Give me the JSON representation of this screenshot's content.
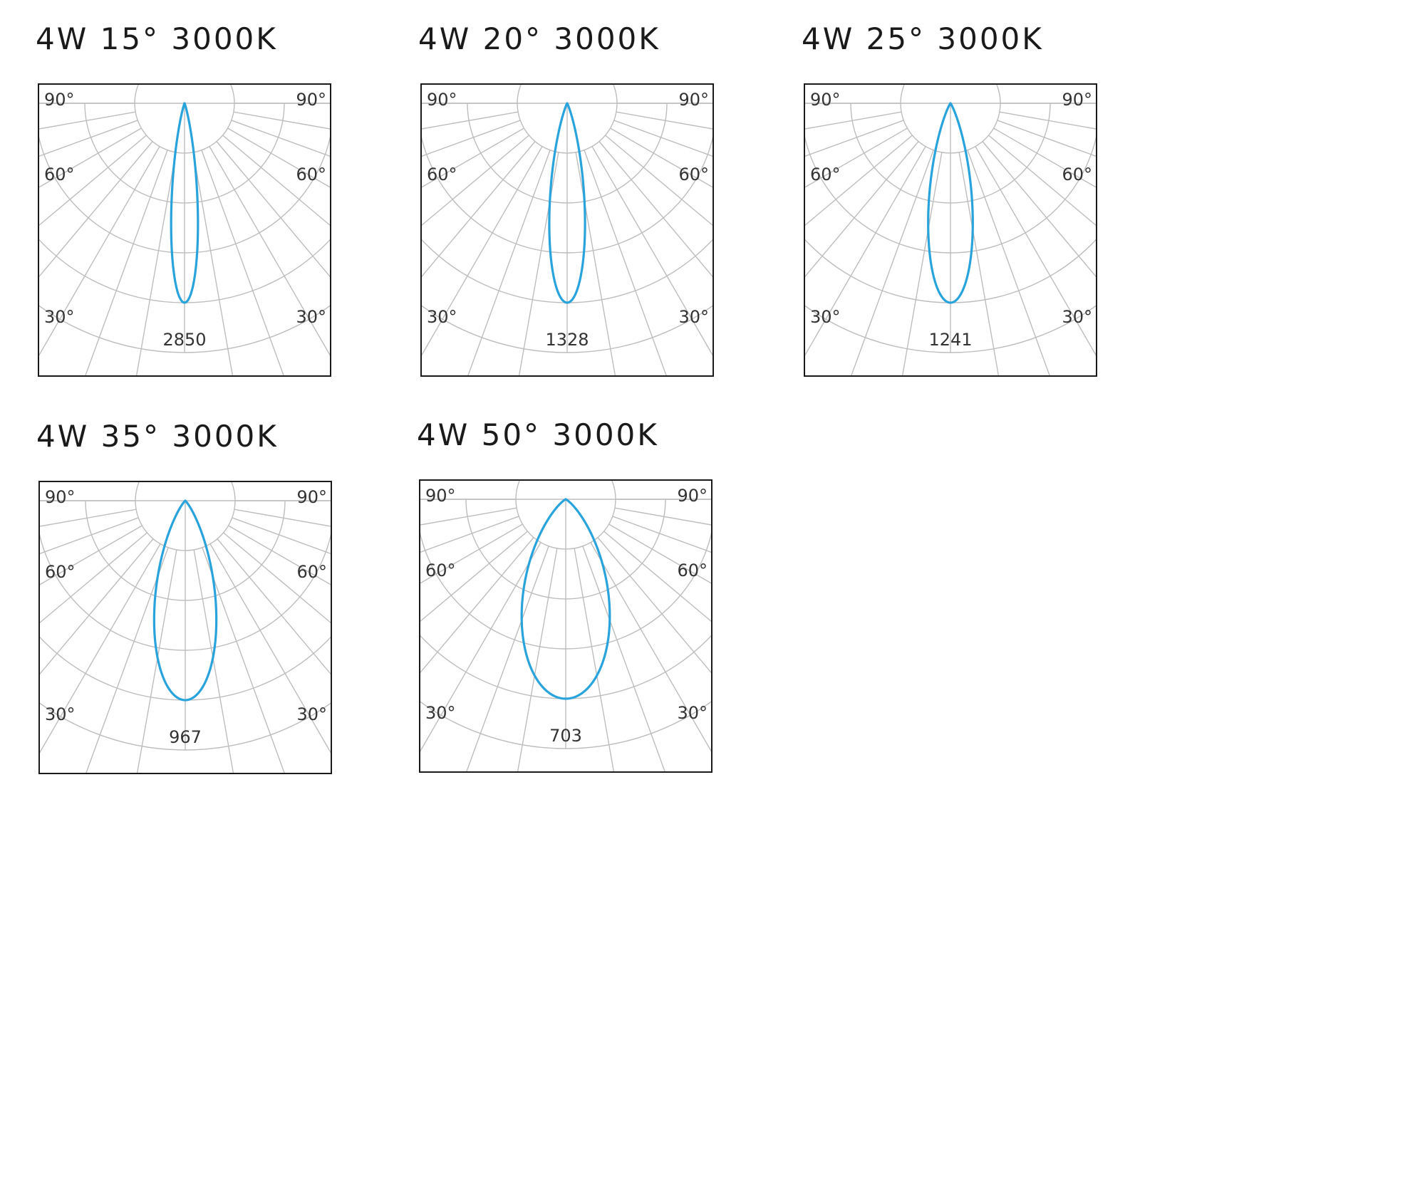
{
  "chart_data": [
    {
      "type": "polar",
      "title": "4W 15° 3000K",
      "beam_angle_deg": 15,
      "peak_intensity": 2850,
      "angle_labels": {
        "upper_left": "90°",
        "upper_right": "90°",
        "mid_left": "60°",
        "mid_right": "60°",
        "lower_left": "30°",
        "lower_right": "30°"
      },
      "curve_color": "#29a3dc"
    },
    {
      "type": "polar",
      "title": "4W 20° 3000K",
      "beam_angle_deg": 20,
      "peak_intensity": 1328,
      "angle_labels": {
        "upper_left": "90°",
        "upper_right": "90°",
        "mid_left": "60°",
        "mid_right": "60°",
        "lower_left": "30°",
        "lower_right": "30°"
      },
      "curve_color": "#29a3dc"
    },
    {
      "type": "polar",
      "title": "4W 25° 3000K",
      "beam_angle_deg": 25,
      "peak_intensity": 1241,
      "angle_labels": {
        "upper_left": "90°",
        "upper_right": "90°",
        "mid_left": "60°",
        "mid_right": "60°",
        "lower_left": "30°",
        "lower_right": "30°"
      },
      "curve_color": "#29a3dc"
    },
    {
      "type": "polar",
      "title": "4W 35° 3000K",
      "beam_angle_deg": 35,
      "peak_intensity": 967,
      "angle_labels": {
        "upper_left": "90°",
        "upper_right": "90°",
        "mid_left": "60°",
        "mid_right": "60°",
        "lower_left": "30°",
        "lower_right": "30°"
      },
      "curve_color": "#29a3dc"
    },
    {
      "type": "polar",
      "title": "4W 50° 3000K",
      "beam_angle_deg": 50,
      "peak_intensity": 703,
      "angle_labels": {
        "upper_left": "90°",
        "upper_right": "90°",
        "mid_left": "60°",
        "mid_right": "60°",
        "lower_left": "30°",
        "lower_right": "30°"
      },
      "curve_color": "#29a3dc"
    }
  ]
}
